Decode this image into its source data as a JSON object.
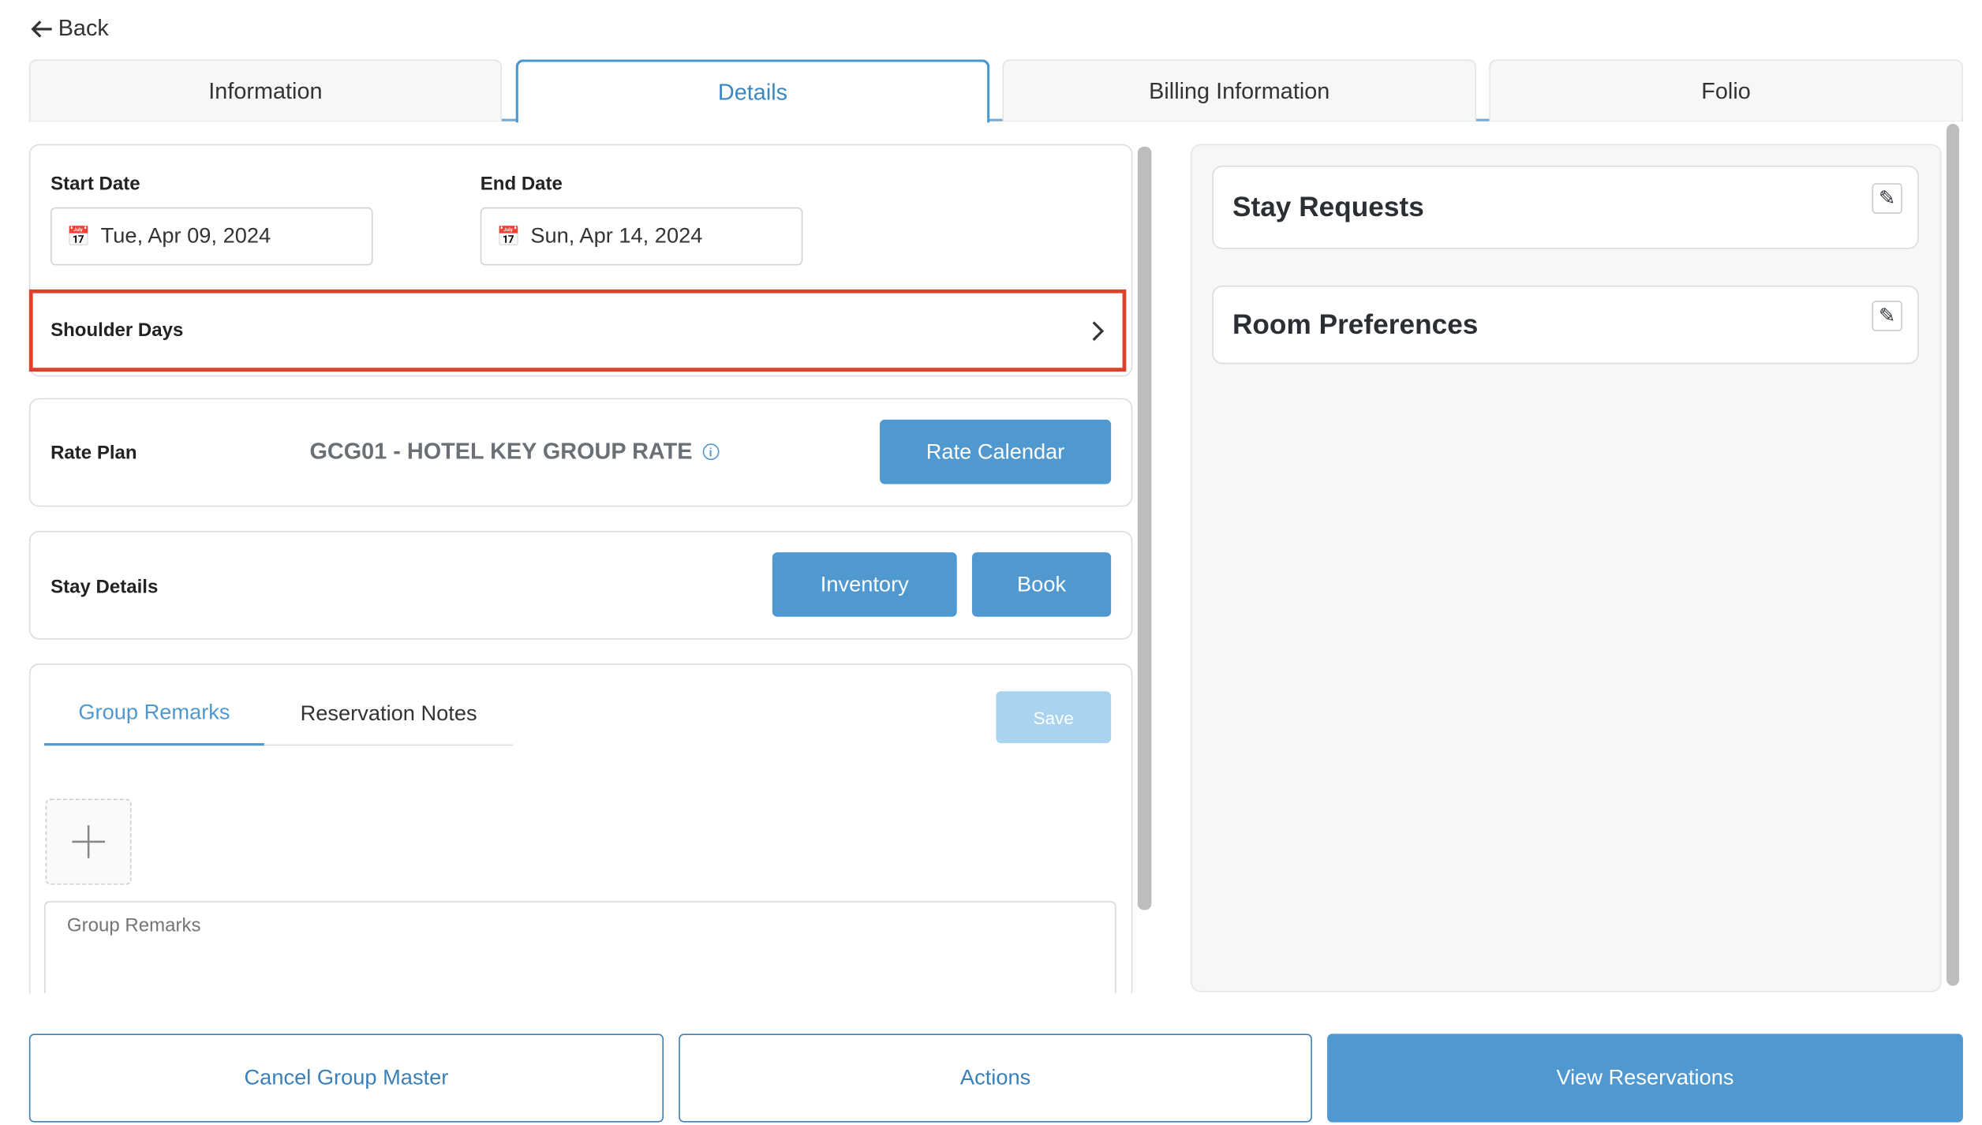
{
  "nav": {
    "back_label": "Back"
  },
  "tabs": [
    {
      "label": "Information"
    },
    {
      "label": "Details"
    },
    {
      "label": "Billing Information"
    },
    {
      "label": "Folio"
    }
  ],
  "active_tab": "Details",
  "dates": {
    "start_label": "Start Date",
    "start_value": "Tue, Apr 09, 2024",
    "end_label": "End Date",
    "end_value": "Sun, Apr 14, 2024"
  },
  "shoulder": {
    "label": "Shoulder Days"
  },
  "rate_plan": {
    "label": "Rate Plan",
    "value": "GCG01 - HOTEL KEY GROUP RATE",
    "button": "Rate Calendar"
  },
  "stay_details": {
    "label": "Stay Details",
    "inventory_button": "Inventory",
    "book_button": "Book"
  },
  "remarks": {
    "tabs": [
      {
        "label": "Group Remarks"
      },
      {
        "label": "Reservation Notes"
      }
    ],
    "save_button": "Save",
    "placeholder": "Group Remarks"
  },
  "right": {
    "stay_requests": "Stay Requests",
    "room_preferences": "Room Preferences"
  },
  "footer": {
    "cancel": "Cancel Group Master",
    "actions": "Actions",
    "view": "View Reservations"
  },
  "colors": {
    "accent": "#4f98d0",
    "highlight": "#e0402a"
  }
}
